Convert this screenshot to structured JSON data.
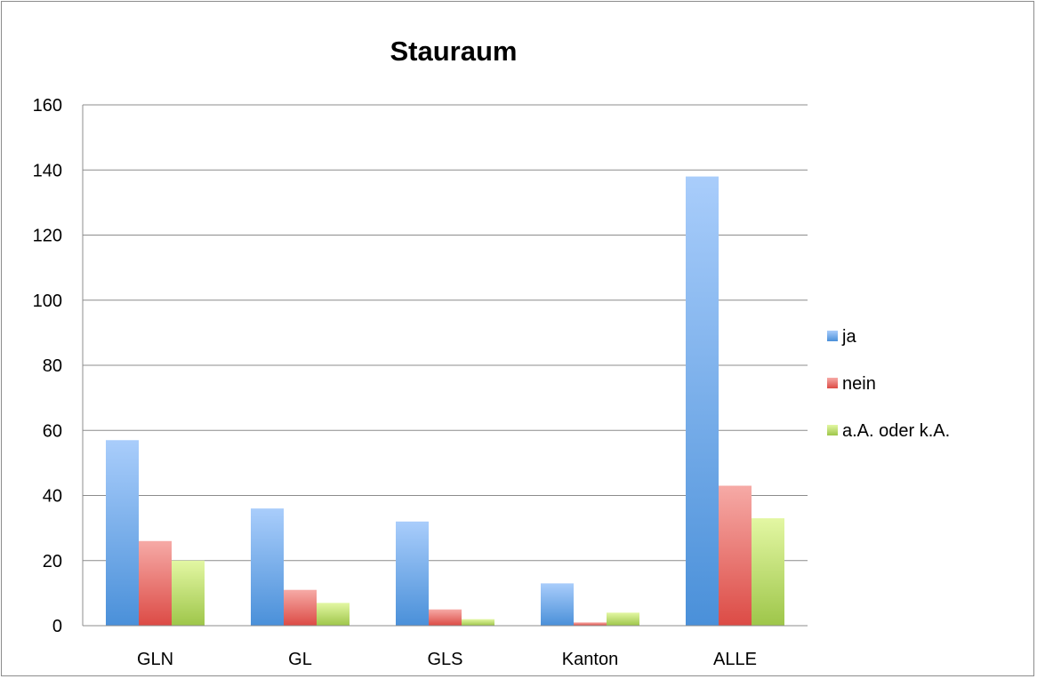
{
  "chart_data": {
    "type": "bar",
    "title": "Stauraum",
    "categories": [
      "GLN",
      "GL",
      "GLS",
      "Kanton",
      "ALLE"
    ],
    "series": [
      {
        "name": "ja",
        "values": [
          57,
          36,
          32,
          13,
          138
        ],
        "color": "#5b9bd5"
      },
      {
        "name": "nein",
        "values": [
          26,
          11,
          5,
          1,
          43
        ],
        "color": "#e0504e"
      },
      {
        "name": "a.A. oder k.A.",
        "values": [
          20,
          7,
          2,
          4,
          33
        ],
        "color": "#a7cc52"
      }
    ],
    "ylim": [
      0,
      160
    ],
    "yticks": [
      "0",
      "20",
      "40",
      "60",
      "80",
      "100",
      "120",
      "140",
      "160"
    ],
    "grid": true,
    "legend_position": "right"
  }
}
